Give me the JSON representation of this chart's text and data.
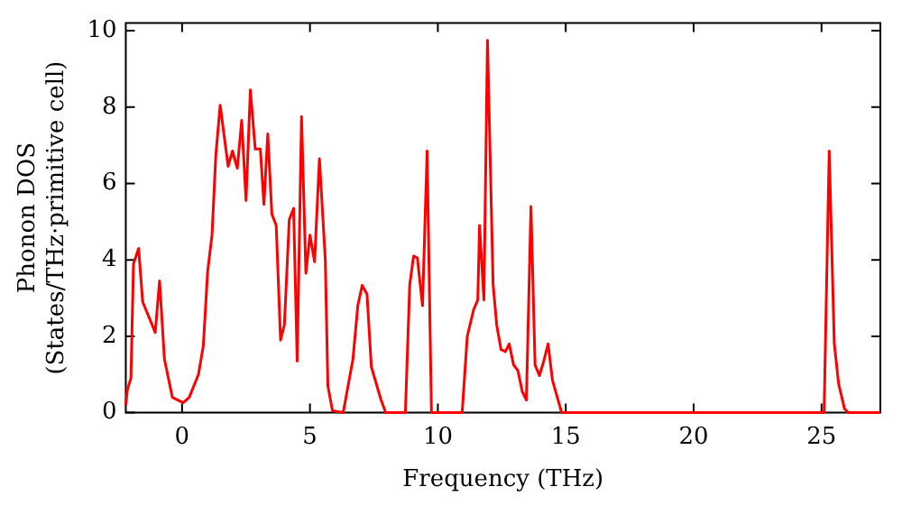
{
  "chart_data": {
    "type": "line",
    "xlabel": "Frequency (THz)",
    "ylabel": "Phonon DOS\n(States/THz·primitive cell)",
    "xlim": [
      -2.2,
      27.3
    ],
    "xticks": [
      0,
      5,
      10,
      15,
      20,
      25
    ],
    "ylim": [
      0,
      10.2
    ],
    "yticks": [
      0,
      2,
      4,
      6,
      8,
      10
    ],
    "grid": false,
    "legend": false,
    "marker": "none",
    "line_style": "solid",
    "series": [
      {
        "color": "#ff0000",
        "x": [
          -2.2,
          -2.14,
          -2.0,
          -1.9,
          -1.7,
          -1.54,
          -1.05,
          -0.88,
          -0.69,
          -0.38,
          0.04,
          0.28,
          0.64,
          0.83,
          1.0,
          1.17,
          1.32,
          1.49,
          1.8,
          1.97,
          2.16,
          2.33,
          2.5,
          2.67,
          2.86,
          3.06,
          3.2,
          3.35,
          3.51,
          3.68,
          3.85,
          4.0,
          4.19,
          4.36,
          4.5,
          4.67,
          4.84,
          5.0,
          5.18,
          5.37,
          5.6,
          5.7,
          5.88,
          6.3,
          6.68,
          6.87,
          7.04,
          7.23,
          7.4,
          7.77,
          7.96,
          8.73,
          8.9,
          9.05,
          9.2,
          9.4,
          9.58,
          9.75,
          10.95,
          11.15,
          11.4,
          11.56,
          11.63,
          11.8,
          11.94,
          12.16,
          12.3,
          12.47,
          12.64,
          12.79,
          12.96,
          13.13,
          13.3,
          13.46,
          13.64,
          13.8,
          13.97,
          14.14,
          14.31,
          14.48,
          14.65,
          14.84,
          25.1,
          25.3,
          25.5,
          25.67,
          25.9,
          26.05,
          27.3
        ],
        "values": [
          0.2,
          0.6,
          0.9,
          3.9,
          4.3,
          2.9,
          2.1,
          3.45,
          1.4,
          0.4,
          0.26,
          0.4,
          1.0,
          1.75,
          3.7,
          4.65,
          6.75,
          8.05,
          6.45,
          6.85,
          6.4,
          7.65,
          5.55,
          8.45,
          6.9,
          6.9,
          5.45,
          7.3,
          5.2,
          4.9,
          1.9,
          2.3,
          5.05,
          5.35,
          1.35,
          7.75,
          3.65,
          4.65,
          3.95,
          6.65,
          4.0,
          0.7,
          0.05,
          0,
          1.4,
          2.8,
          3.33,
          3.1,
          1.2,
          0.35,
          0,
          0,
          3.35,
          4.1,
          4.05,
          2.8,
          6.85,
          0,
          0,
          2.0,
          2.7,
          2.95,
          4.9,
          2.95,
          9.75,
          3.35,
          2.3,
          1.65,
          1.6,
          1.8,
          1.25,
          1.1,
          0.55,
          0.33,
          5.4,
          1.25,
          0.97,
          1.35,
          1.8,
          0.85,
          0.45,
          0,
          0,
          6.85,
          1.8,
          0.75,
          0.1,
          0,
          0
        ]
      }
    ]
  }
}
